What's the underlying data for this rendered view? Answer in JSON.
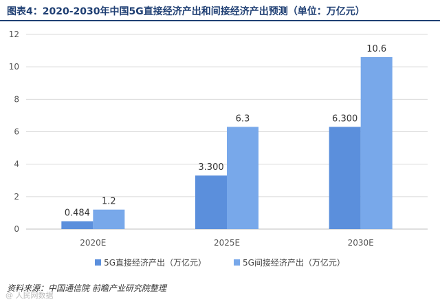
{
  "title": "图表4：2020-2030年中国5G直接经济产出和间接经济产出预测（单位：万亿元）",
  "source": "资料来源：中国通信院 前瞻产业研究院整理",
  "watermark": "@ 人民网数据",
  "colors": {
    "title": "#1f3f73",
    "direct": "#5b8fdc",
    "indirect": "#78a8ea",
    "grid": "#d9d9d9",
    "axis_text": "#555555"
  },
  "chart_data": {
    "type": "bar",
    "title": "图表4：2020-2030年中国5G直接经济产出和间接经济产出预测（单位：万亿元）",
    "xlabel": "",
    "ylabel": "",
    "categories": [
      "2020E",
      "2025E",
      "2030E"
    ],
    "yticks": [
      "0",
      "2",
      "4",
      "6",
      "8",
      "10",
      "12"
    ],
    "ylim": [
      0,
      12
    ],
    "grid": true,
    "legend_position": "bottom",
    "series": [
      {
        "name": "5G直接经济产出（万亿元）",
        "values": [
          0.484,
          3.3,
          6.3
        ],
        "labels": [
          "0.484",
          "3.300",
          "6.300"
        ]
      },
      {
        "name": "5G间接经济产出（万亿元）",
        "values": [
          1.2,
          6.3,
          10.6
        ],
        "labels": [
          "1.2",
          "6.3",
          "10.6"
        ]
      }
    ]
  }
}
